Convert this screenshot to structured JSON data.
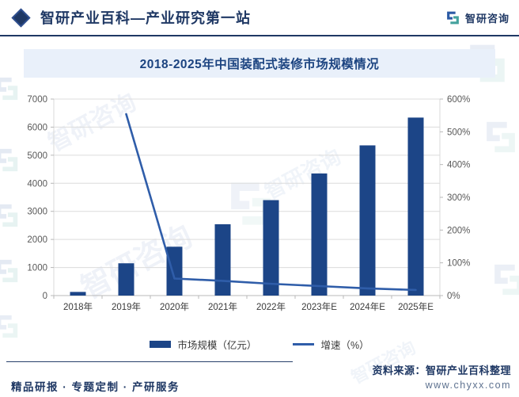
{
  "header": {
    "title": "智研产业百科—产业研究第一站",
    "brand": "智研咨询"
  },
  "chart_data": {
    "type": "combo",
    "title": "2018-2025年中国装配式装修市场规模情况",
    "categories": [
      "2018年",
      "2019年",
      "2020年",
      "2021年",
      "2022年",
      "2023年E",
      "2024年E",
      "2025年E"
    ],
    "series": [
      {
        "name": "市场规模（亿元）",
        "type": "bar",
        "axis": "left",
        "color": "#1C4587",
        "values": [
          130,
          1150,
          1740,
          2540,
          3400,
          4350,
          5350,
          6340
        ]
      },
      {
        "name": "增速（%）",
        "type": "line",
        "axis": "right",
        "color": "#2F5DA9",
        "values": [
          null,
          554,
          52,
          45,
          36,
          29,
          22,
          17
        ]
      }
    ],
    "left_axis": {
      "min": 0,
      "max": 7000,
      "step": 1000
    },
    "right_axis": {
      "min": 0,
      "max": 600,
      "step": 100,
      "suffix": "%"
    },
    "grid": true,
    "legend_position": "bottom"
  },
  "footer": {
    "services": "精品研报 · 专题定制 · 产研服务",
    "source_label": "资料来源：智研产业百科整理",
    "website": "www.chyxx.com"
  },
  "watermark": {
    "text": "智研咨询"
  }
}
